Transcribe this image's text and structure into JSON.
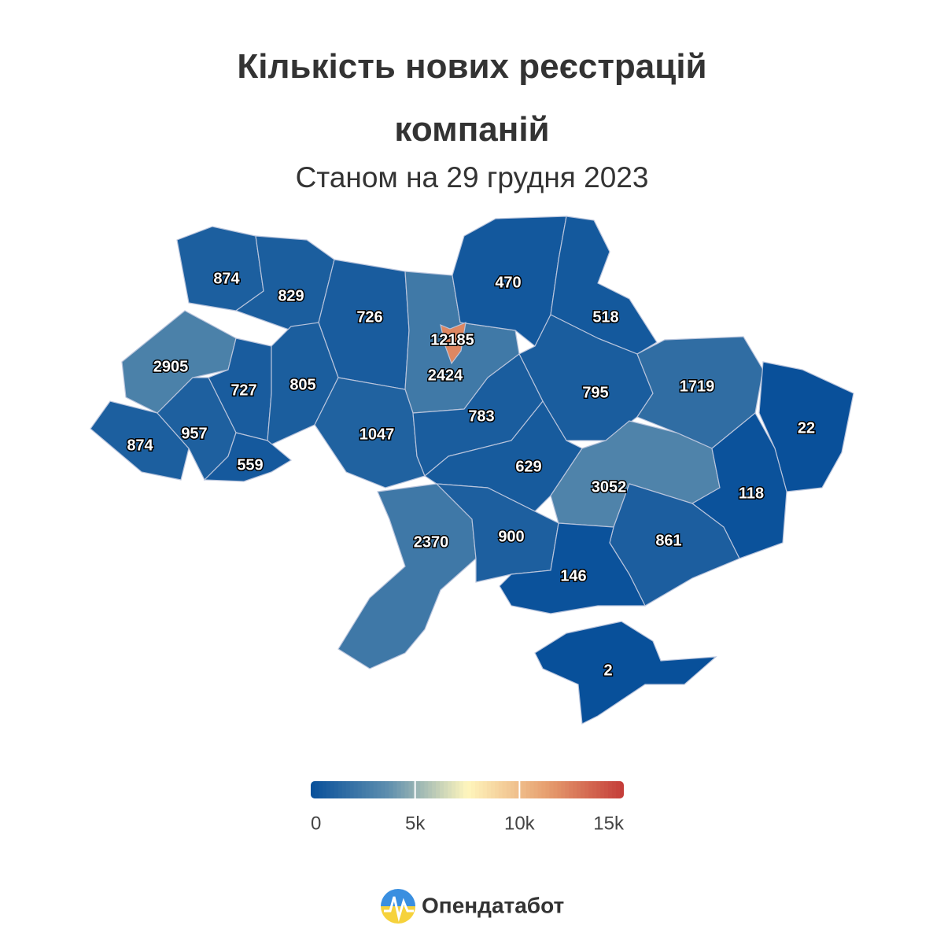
{
  "chart_data": {
    "type": "choropleth",
    "title": "Кількість нових реєстрацій компаній",
    "subtitle": "Станом на 29 грудня 2023",
    "values": [
      874,
      829,
      726,
      2424,
      12185,
      470,
      518,
      2905,
      727,
      805,
      795,
      1719,
      22,
      874,
      957,
      559,
      1047,
      783,
      629,
      3052,
      118,
      2370,
      900,
      861,
      146,
      2
    ],
    "colorlim": [
      0,
      15000
    ],
    "colors": [
      "#08509a",
      "#5f8fae",
      "#fff6bd",
      "#e7a070",
      "#c43c39"
    ],
    "colorticks": [
      0,
      {
        "value": 5000,
        "label": "5k"
      },
      {
        "value": 10000,
        "label": "10k"
      },
      {
        "value": 15000,
        "label": "15k"
      }
    ]
  },
  "brand": "Опендатабот"
}
